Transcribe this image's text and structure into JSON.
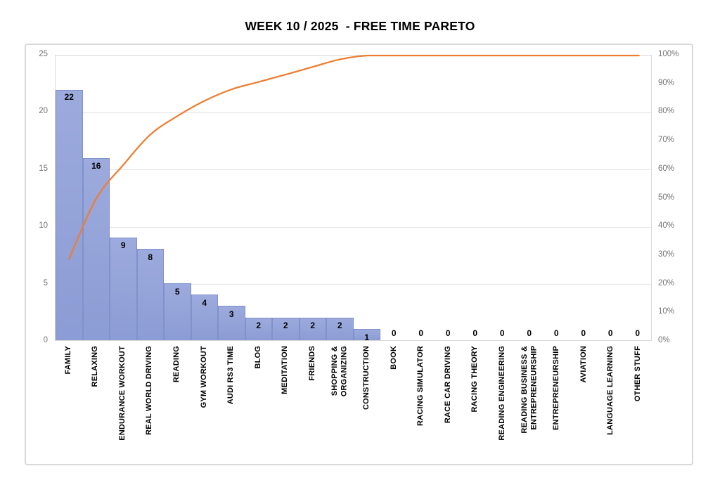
{
  "chart_data": {
    "type": "pareto (bar + cumulative percentage line)",
    "title": "WEEK 10 / 2025  - FREE TIME PARETO",
    "categories": [
      "FAMILY",
      "RELAXING",
      "ENDURANCE WORKOUT",
      "REAL WORLD DRIVING",
      "READING",
      "GYM WORKOUT",
      "AUDI RS3 TIME",
      "BLOG",
      "MEDITATION",
      "FRIENDS",
      "SHOPPING &\nORGANIZING",
      "CONSTRUCTION",
      "BOOK",
      "RACING SIMULATOR",
      "RACE CAR DRIVING",
      "RACING THEORY",
      "READING ENGINEERING",
      "READING BUSINESS &\nENTREPRENEURSHIP",
      "ENTREPRENEURSHIP",
      "AVIATION",
      "LANGUAGE LEARNING",
      "OTHER STUFF"
    ],
    "series": [
      {
        "name": "bar-series",
        "type": "bar",
        "values": [
          22,
          16,
          9,
          8,
          5,
          4,
          3,
          2,
          2,
          2,
          2,
          1,
          0,
          0,
          0,
          0,
          0,
          0,
          0,
          0,
          0,
          0
        ],
        "data_labels": [
          "22",
          "16",
          "9",
          "8",
          "5",
          "4",
          "3",
          "2",
          "2",
          "2",
          "2",
          "1",
          "0",
          "0",
          "0",
          "0",
          "0",
          "0",
          "0",
          "0",
          "0",
          "0"
        ],
        "color_top": "#9CAADD",
        "color_bottom": "#8C9CD4",
        "border_color": "#8092CB"
      },
      {
        "name": "cumulative-line",
        "type": "line",
        "values": [
          28.9,
          50.0,
          61.8,
          72.4,
          78.9,
          84.2,
          88.2,
          90.8,
          93.4,
          96.1,
          98.7,
          100,
          100,
          100,
          100,
          100,
          100,
          100,
          100,
          100,
          100,
          100
        ],
        "color": "#ED7D31"
      }
    ],
    "left_axis": {
      "min": 0,
      "max": 25,
      "step": 5,
      "ticks": [
        "25",
        "20",
        "15",
        "10",
        "5",
        "0"
      ]
    },
    "right_axis": {
      "min": 0,
      "max": 100,
      "step": 10,
      "ticks": [
        "100%",
        "90%",
        "80%",
        "70%",
        "60%",
        "50%",
        "40%",
        "30%",
        "20%",
        "10%",
        "0%"
      ]
    },
    "grid": true,
    "legend": "none"
  }
}
